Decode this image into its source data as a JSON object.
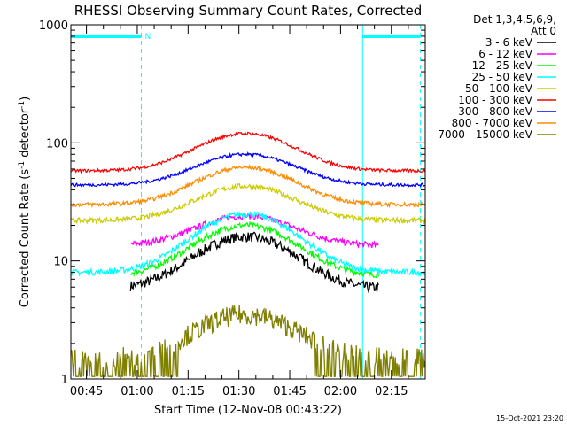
{
  "chart_data": {
    "type": "line",
    "title": "RHESSI Observing Summary Count Rates, Corrected",
    "xlabel": "Start Time (12-Nov-08 00:43:22)",
    "ylabel_main": "Corrected Count Rate (s",
    "ylabel_sup1": "-1",
    "ylabel_mid": " detector",
    "ylabel_sup2": "-1",
    "ylabel_end": ")",
    "yscale": "log",
    "ylim": [
      1,
      1000
    ],
    "xlim_minutes": [
      40.4,
      145.0
    ],
    "y_ticks": [
      {
        "value": 1,
        "label": "1"
      },
      {
        "value": 10,
        "label": "10"
      },
      {
        "value": 100,
        "label": "100"
      },
      {
        "value": 1000,
        "label": "1000"
      }
    ],
    "x_ticks": [
      {
        "minutes": 45,
        "label": "00:45"
      },
      {
        "minutes": 60,
        "label": "01:00"
      },
      {
        "minutes": 75,
        "label": "01:15"
      },
      {
        "minutes": 90,
        "label": "01:30"
      },
      {
        "minutes": 105,
        "label": "01:45"
      },
      {
        "minutes": 120,
        "label": "02:00"
      },
      {
        "minutes": 135,
        "label": "02:15"
      }
    ],
    "legend_header_1": "Det 1,3,4,5,6,9,",
    "legend_header_2": "Att 0",
    "legend_position": "right",
    "series": [
      {
        "name": "3 - 6 keV",
        "color": "#000000",
        "start": 58.0,
        "end": 131.3,
        "base": 5.8,
        "peak": 16,
        "noise": 0.1
      },
      {
        "name": "6 - 12 keV",
        "color": "#ff00ff",
        "start": 58.0,
        "end": 131.3,
        "base": 13.5,
        "peak": 24,
        "noise": 0.06
      },
      {
        "name": "12 - 25 keV",
        "color": "#00ff00",
        "start": 58.0,
        "end": 131.3,
        "base": 7.5,
        "peak": 20,
        "noise": 0.06
      },
      {
        "name": "25 - 50 keV",
        "color": "#00ffff",
        "start": 40.4,
        "end": 145.0,
        "base": 8.0,
        "peak": 25,
        "noise": 0.06
      },
      {
        "name": "50 - 100 keV",
        "color": "#cccc00",
        "start": 40.4,
        "end": 145.0,
        "base": 22,
        "peak": 43,
        "noise": 0.05
      },
      {
        "name": "100 - 300 keV",
        "color": "#ff0000",
        "start": 40.4,
        "end": 145.0,
        "base": 58,
        "peak": 120,
        "noise": 0.03
      },
      {
        "name": "300 - 800 keV",
        "color": "#0000ff",
        "start": 40.4,
        "end": 145.0,
        "base": 44,
        "peak": 80,
        "noise": 0.03
      },
      {
        "name": "800 - 7000 keV",
        "color": "#ff8c00",
        "start": 40.4,
        "end": 145.0,
        "base": 30,
        "peak": 62,
        "noise": 0.04
      },
      {
        "name": "7000 - 15000 keV",
        "color": "#808000",
        "start": 40.4,
        "end": 145.0,
        "base": 1.5,
        "peak": 3.5,
        "noise": 0.2
      }
    ],
    "flag_label": "N",
    "night_intervals": [
      [
        40.4,
        61.2
      ],
      [
        126.5,
        143.6
      ]
    ],
    "saa_marks_minutes": [
      40.4,
      61.2,
      126.5,
      143.6
    ],
    "footer": "15-Oct-2021 23:20"
  }
}
